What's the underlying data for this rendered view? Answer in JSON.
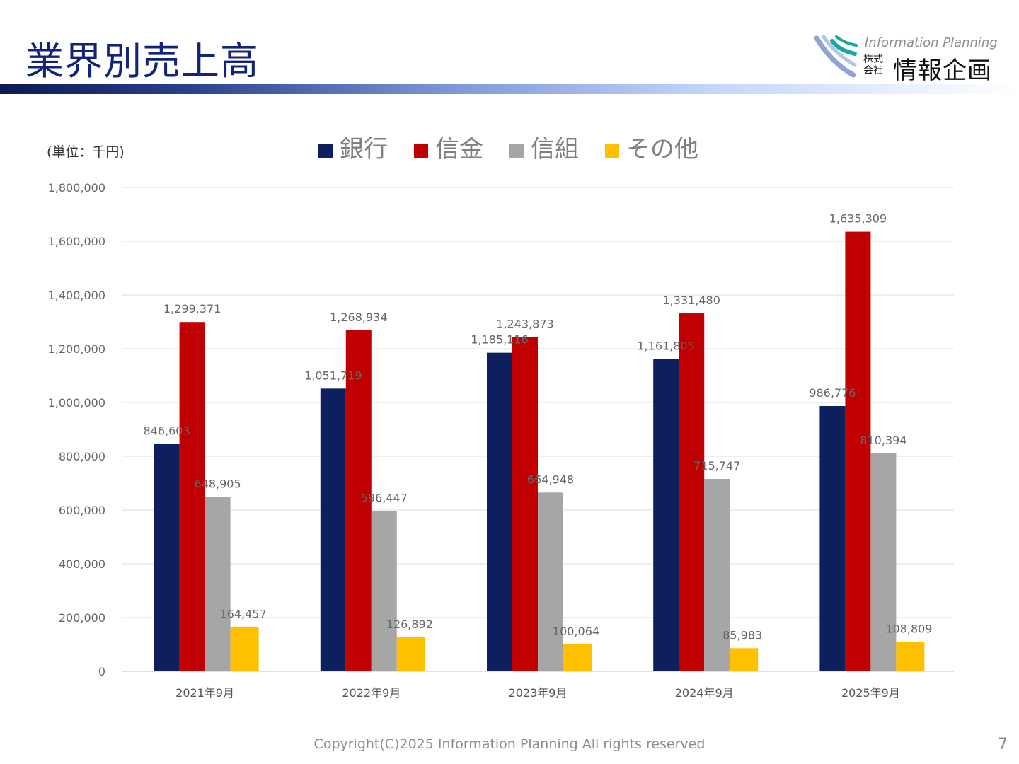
{
  "slide": {
    "title": "業界別売上高",
    "unit": "(単位：千円)",
    "footer": "Copyright(C)2025 Information Planning All rights reserved",
    "page_number": "7"
  },
  "logo": {
    "english": "Information Planning",
    "kabushiki": "株式会社",
    "japanese": "情報企画",
    "mark_colors": [
      "#1aa89a",
      "#8fa3d6"
    ]
  },
  "chart_data": {
    "type": "bar",
    "categories": [
      "2021年9月",
      "2022年9月",
      "2023年9月",
      "2024年9月",
      "2025年9月"
    ],
    "series": [
      {
        "name": "銀行",
        "color": "#0d1f5c",
        "values": [
          846603,
          1051719,
          1185116,
          1161805,
          986776
        ],
        "labels": [
          "846,603",
          "1,051,719",
          "1,185,116",
          "1,161,805",
          "986,776"
        ]
      },
      {
        "name": "信金",
        "color": "#c00000",
        "values": [
          1299371,
          1268934,
          1243873,
          1331480,
          1635309
        ],
        "labels": [
          "1,299,371",
          "1,268,934",
          "1,243,873",
          "1,331,480",
          "1,635,309"
        ]
      },
      {
        "name": "信組",
        "color": "#a6a6a6",
        "values": [
          648905,
          596447,
          664948,
          715747,
          810394
        ],
        "labels": [
          "648,905",
          "596,447",
          "664,948",
          "715,747",
          "810,394"
        ]
      },
      {
        "name": "その他",
        "color": "#ffc000",
        "values": [
          164457,
          126892,
          100064,
          85983,
          108809
        ],
        "labels": [
          "164,457",
          "126,892",
          "100,064",
          "85,983",
          "108,809"
        ]
      }
    ],
    "yticks": [
      "0",
      "200,000",
      "400,000",
      "600,000",
      "800,000",
      "1,000,000",
      "1,200,000",
      "1,400,000",
      "1,600,000",
      "1,800,000"
    ],
    "ylim": [
      0,
      1800000
    ],
    "grid": true,
    "legend_position": "top"
  }
}
